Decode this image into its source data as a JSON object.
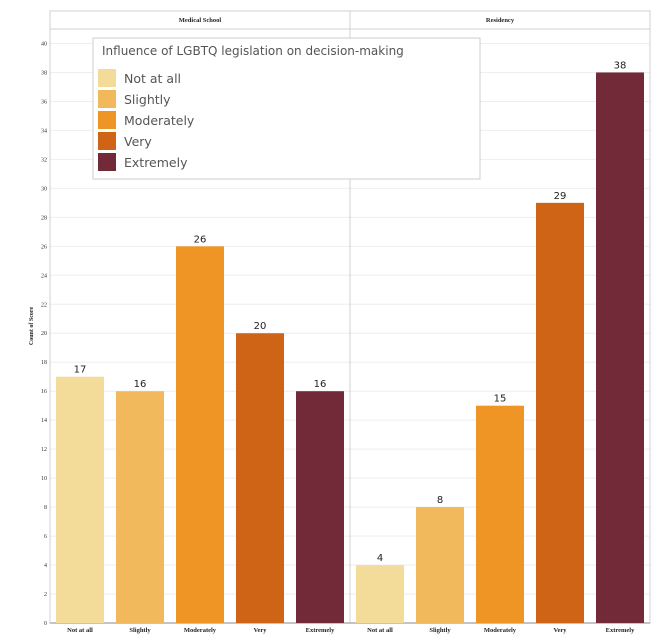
{
  "chart_data": {
    "type": "bar",
    "ylabel": "Count of Score",
    "ylim": [
      0,
      41
    ],
    "yticks": [
      0,
      2,
      4,
      6,
      8,
      10,
      12,
      14,
      16,
      18,
      20,
      22,
      24,
      26,
      28,
      30,
      32,
      34,
      36,
      38,
      40
    ],
    "categories": [
      "Not at all",
      "Slightly",
      "Moderately",
      "Very",
      "Extremely"
    ],
    "facets": [
      {
        "name": "Medical School",
        "values": [
          17,
          16,
          26,
          20,
          16
        ]
      },
      {
        "name": "Residency",
        "values": [
          4,
          8,
          15,
          29,
          38
        ]
      }
    ],
    "legend": {
      "title": "Influence of LGBTQ legislation on decision-making",
      "placement": "top-left",
      "items": [
        "Not at all",
        "Slightly",
        "Moderately",
        "Very",
        "Extremely"
      ]
    },
    "colors": [
      "#f3dc9a",
      "#f1b95c",
      "#ee9526",
      "#cf6316",
      "#722a39"
    ],
    "grid": "horizontal"
  }
}
